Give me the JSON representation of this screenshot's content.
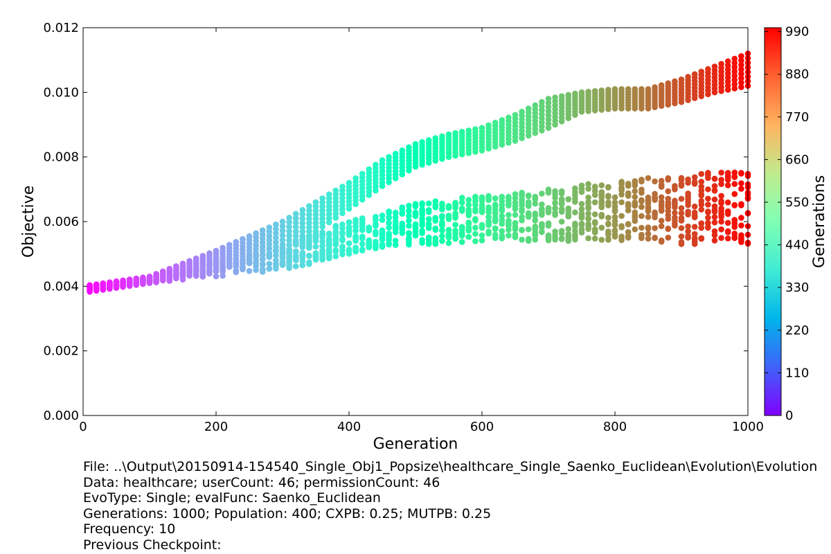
{
  "chart_data": {
    "type": "scatter",
    "xlabel": "Generation",
    "ylabel": "Objective",
    "xlim": [
      0,
      1000
    ],
    "ylim": [
      0,
      0.012
    ],
    "xticks": [
      "0",
      "200",
      "400",
      "600",
      "800",
      "1000"
    ],
    "yticks": [
      "0.000",
      "0.002",
      "0.004",
      "0.006",
      "0.008",
      "0.010",
      "0.012"
    ],
    "grid": false,
    "colormap": "rainbow",
    "colorbar": {
      "label": "Generations",
      "range": [
        0,
        1000
      ],
      "ticks": [
        "0",
        "110",
        "220",
        "330",
        "440",
        "550",
        "660",
        "770",
        "880",
        "990"
      ]
    },
    "sampling_interval": 10,
    "upper_band": {
      "x": [
        0,
        100,
        200,
        300,
        350,
        400,
        450,
        500,
        550,
        600,
        650,
        700,
        750,
        800,
        850,
        900,
        950,
        1000
      ],
      "top": [
        0.004,
        0.0043,
        0.0051,
        0.006,
        0.0066,
        0.0072,
        0.0079,
        0.0084,
        0.0087,
        0.0089,
        0.0093,
        0.0098,
        0.01,
        0.0101,
        0.0101,
        0.0104,
        0.0108,
        0.0112
      ],
      "bottom": [
        0.0038,
        0.0041,
        0.0045,
        0.005,
        0.0057,
        0.0064,
        0.0071,
        0.0077,
        0.008,
        0.0082,
        0.0085,
        0.0089,
        0.0094,
        0.0095,
        0.0095,
        0.0097,
        0.01,
        0.0102
      ]
    },
    "lower_band": {
      "x": [
        0,
        100,
        200,
        300,
        350,
        400,
        450,
        500,
        550,
        600,
        650,
        700,
        750,
        800,
        850,
        900,
        950,
        1000
      ],
      "top": [
        0.004,
        0.0043,
        0.0048,
        0.0052,
        0.0057,
        0.006,
        0.0063,
        0.0066,
        0.0067,
        0.0068,
        0.0069,
        0.0071,
        0.0072,
        0.0072,
        0.0074,
        0.0075,
        0.0076,
        0.0076
      ],
      "bottom": [
        0.0038,
        0.0041,
        0.0043,
        0.0045,
        0.0047,
        0.005,
        0.0052,
        0.0053,
        0.0053,
        0.0054,
        0.0054,
        0.0054,
        0.0054,
        0.0054,
        0.0054,
        0.0053,
        0.0053,
        0.0053
      ]
    }
  },
  "info": {
    "file_line": "File: ..\\Output\\20150914-154540_Single_Obj1_Popsize\\healthcare_Single_Saenko_Euclidean\\Evolution\\Evolution",
    "data_line": "Data: healthcare; userCount: 46; permissionCount: 46",
    "evotype_line": "EvoType: Single; evalFunc: Saenko_Euclidean",
    "generations_line": "Generations: 1000; Population: 400; CXPB: 0.25; MUTPB: 0.25",
    "frequency_line": "Frequency: 10",
    "checkpoint_line": "Previous Checkpoint:"
  }
}
